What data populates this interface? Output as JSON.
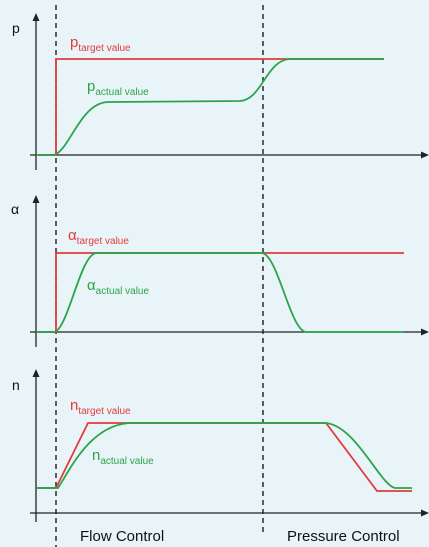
{
  "panels": [
    {
      "axis_label": "p",
      "target": {
        "sym": "p",
        "sub": "target value"
      },
      "actual": {
        "sym": "p",
        "sub": "actual value"
      }
    },
    {
      "axis_label": "α",
      "target": {
        "sym": "α",
        "sub": "target value"
      },
      "actual": {
        "sym": "α",
        "sub": "actual value"
      }
    },
    {
      "axis_label": "n",
      "target": {
        "sym": "n",
        "sub": "target value"
      },
      "actual": {
        "sym": "n",
        "sub": "actual value"
      }
    }
  ],
  "phases": {
    "left": "Flow Control",
    "right": "Pressure Control"
  },
  "colors": {
    "target": "#e23b3b",
    "actual": "#2aa44b",
    "axis": "#222222",
    "background": "#e9f4f8"
  }
}
